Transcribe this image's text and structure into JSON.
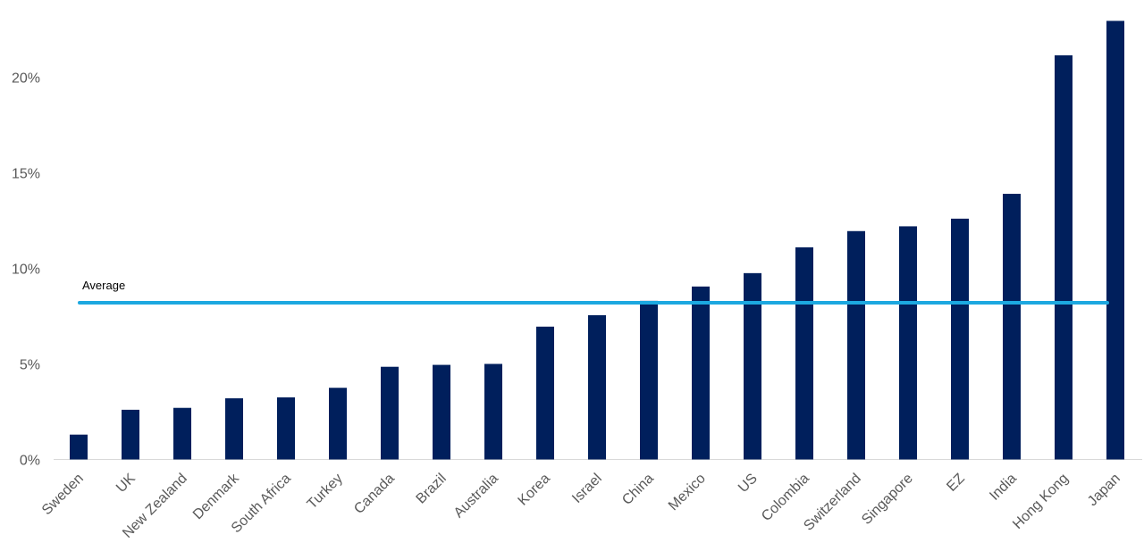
{
  "chart_data": {
    "type": "bar",
    "categories": [
      "Sweden",
      "UK",
      "New Zealand",
      "Denmark",
      "South Africa",
      "Turkey",
      "Canada",
      "Brazil",
      "Australia",
      "Korea",
      "Israel",
      "China",
      "Mexico",
      "US",
      "Colombia",
      "Switzerland",
      "Singapore",
      "EZ",
      "India",
      "Hong Kong",
      "Japan"
    ],
    "values": [
      1.3,
      2.6,
      2.7,
      3.2,
      3.25,
      3.75,
      4.85,
      4.95,
      5.0,
      6.95,
      7.55,
      8.3,
      9.05,
      9.75,
      11.1,
      11.95,
      12.2,
      12.6,
      13.9,
      21.15,
      22.95
    ],
    "ylim": [
      0,
      23
    ],
    "yticks": [
      0,
      5,
      10,
      15,
      20
    ],
    "ytick_labels": [
      "0%",
      "5%",
      "10%",
      "15%",
      "20%"
    ],
    "grid": false,
    "bar_color": "#001f5c",
    "average": {
      "label": "Average",
      "value": 8.2,
      "color": "#1ca8e0"
    }
  }
}
